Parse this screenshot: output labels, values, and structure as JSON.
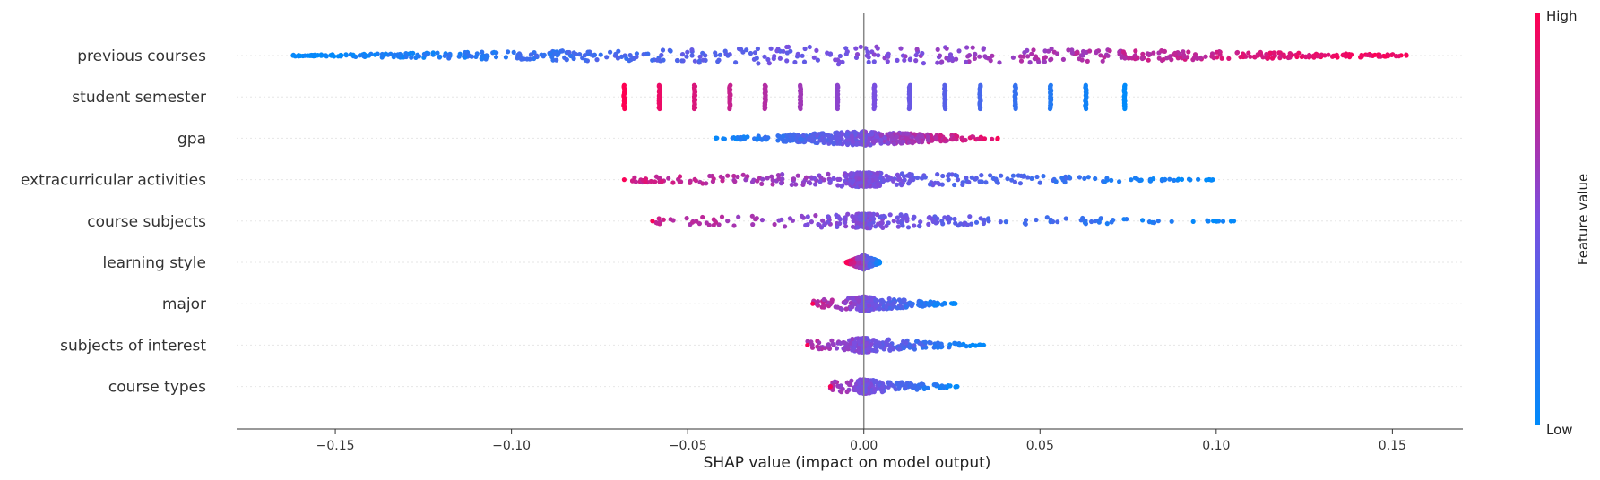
{
  "chart_data": {
    "type": "scatter",
    "subtype": "shap-beeswarm",
    "title": "",
    "xlabel": "SHAP value (impact on model output)",
    "xlim": [
      -0.178,
      0.17
    ],
    "xticks": [
      -0.15,
      -0.1,
      -0.05,
      0.0,
      0.05,
      0.1,
      0.15
    ],
    "xtick_labels": [
      "−0.15",
      "−0.10",
      "−0.05",
      "0.00",
      "0.05",
      "0.10",
      "0.15"
    ],
    "zero_line": true,
    "grid": false,
    "colorbar": {
      "label": "Feature value",
      "high_label": "High",
      "low_label": "Low",
      "low_color": "#008bfb",
      "high_color": "#ff0052"
    },
    "features": [
      {
        "name": "previous courses",
        "kind": "spread",
        "min": -0.162,
        "max": 0.154,
        "core": 0.045,
        "density": 1.0,
        "direction": 1
      },
      {
        "name": "student semester",
        "kind": "discrete",
        "levels": [
          -0.068,
          -0.058,
          -0.048,
          -0.038,
          -0.028,
          -0.018,
          -0.0075,
          0.003,
          0.013,
          0.023,
          0.033,
          0.043,
          0.053,
          0.063,
          0.074
        ],
        "direction": -1
      },
      {
        "name": "gpa",
        "kind": "spread",
        "min": -0.042,
        "max": 0.038,
        "core": 0.045,
        "density": 0.75,
        "direction": 1
      },
      {
        "name": "extracurricular activities",
        "kind": "spread",
        "min": -0.068,
        "max": 0.099,
        "core": 0.008,
        "density": 0.9,
        "direction": -1
      },
      {
        "name": "course subjects",
        "kind": "spread",
        "min": -0.06,
        "max": 0.105,
        "core": 0.004,
        "density": 0.55,
        "direction": -1
      },
      {
        "name": "learning style",
        "kind": "spread",
        "min": -0.005,
        "max": 0.0045,
        "core": 0.01,
        "density": 0.6,
        "direction": -1
      },
      {
        "name": "major",
        "kind": "spread",
        "min": -0.0145,
        "max": 0.026,
        "core": 0.003,
        "density": 0.5,
        "direction": -1
      },
      {
        "name": "subjects of interest",
        "kind": "spread",
        "min": -0.016,
        "max": 0.034,
        "core": 0.003,
        "density": 0.5,
        "direction": -1
      },
      {
        "name": "course types",
        "kind": "spread",
        "min": -0.0095,
        "max": 0.0265,
        "core": 0.003,
        "density": 0.45,
        "direction": -1
      }
    ]
  }
}
